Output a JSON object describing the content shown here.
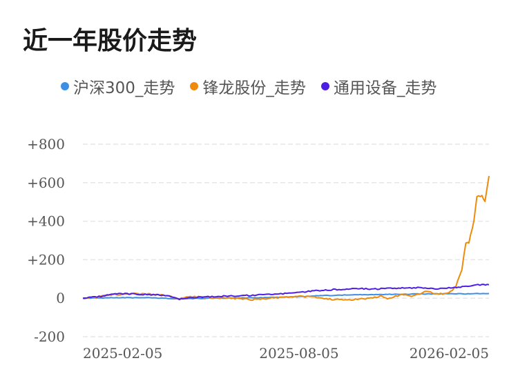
{
  "chart_data": {
    "type": "line",
    "title": "近一年股价走势",
    "legend_position": "top",
    "grid": true,
    "y_ticks": [
      "+800",
      "+600",
      "+400",
      "+200",
      "0",
      "-200"
    ],
    "y_tick_values": [
      800,
      600,
      400,
      200,
      0,
      -200
    ],
    "ylim": [
      -200,
      800
    ],
    "x_ticks": [
      "2025-02-05",
      "2025-08-05",
      "2026-02-05"
    ],
    "x_range": [
      "2025-01-02",
      "2026-02-10"
    ],
    "series": [
      {
        "name": "沪深300_走势",
        "color": "#3d8fe6",
        "points": [
          [
            "2025-01-02",
            0
          ],
          [
            "2025-02-05",
            3
          ],
          [
            "2025-03-10",
            2
          ],
          [
            "2025-04-08",
            -3
          ],
          [
            "2025-05-15",
            0
          ],
          [
            "2025-06-20",
            2
          ],
          [
            "2025-07-20",
            5
          ],
          [
            "2025-08-05",
            8
          ],
          [
            "2025-09-01",
            14
          ],
          [
            "2025-10-01",
            18
          ],
          [
            "2025-11-01",
            20
          ],
          [
            "2025-12-01",
            22
          ],
          [
            "2026-01-01",
            23
          ],
          [
            "2026-01-20",
            23
          ],
          [
            "2026-02-10",
            24
          ]
        ]
      },
      {
        "name": "锋龙股份_走势",
        "color": "#ee8a0c",
        "points": [
          [
            "2025-01-02",
            0
          ],
          [
            "2025-01-15",
            5
          ],
          [
            "2025-02-01",
            18
          ],
          [
            "2025-02-20",
            22
          ],
          [
            "2025-03-10",
            20
          ],
          [
            "2025-03-25",
            15
          ],
          [
            "2025-04-08",
            -5
          ],
          [
            "2025-04-15",
            10
          ],
          [
            "2025-05-01",
            5
          ],
          [
            "2025-05-20",
            0
          ],
          [
            "2025-06-10",
            -3
          ],
          [
            "2025-06-20",
            -8
          ],
          [
            "2025-07-05",
            0
          ],
          [
            "2025-07-25",
            5
          ],
          [
            "2025-08-15",
            10
          ],
          [
            "2025-09-01",
            -5
          ],
          [
            "2025-09-20",
            -8
          ],
          [
            "2025-10-10",
            -3
          ],
          [
            "2025-10-25",
            10
          ],
          [
            "2025-11-01",
            -5
          ],
          [
            "2025-11-15",
            20
          ],
          [
            "2025-11-25",
            10
          ],
          [
            "2025-12-10",
            35
          ],
          [
            "2025-12-20",
            20
          ],
          [
            "2026-01-01",
            25
          ],
          [
            "2026-01-08",
            60
          ],
          [
            "2026-01-14",
            150
          ],
          [
            "2026-01-18",
            290
          ],
          [
            "2026-01-21",
            290
          ],
          [
            "2026-01-26",
            400
          ],
          [
            "2026-01-29",
            530
          ],
          [
            "2026-02-03",
            530
          ],
          [
            "2026-02-06",
            505
          ],
          [
            "2026-02-10",
            635
          ]
        ]
      },
      {
        "name": "通用设备_走势",
        "color": "#4c1fe3",
        "points": [
          [
            "2025-01-02",
            0
          ],
          [
            "2025-01-20",
            10
          ],
          [
            "2025-02-05",
            25
          ],
          [
            "2025-03-01",
            20
          ],
          [
            "2025-03-25",
            15
          ],
          [
            "2025-04-08",
            -5
          ],
          [
            "2025-04-25",
            5
          ],
          [
            "2025-05-20",
            10
          ],
          [
            "2025-06-20",
            15
          ],
          [
            "2025-07-10",
            20
          ],
          [
            "2025-08-05",
            30
          ],
          [
            "2025-08-20",
            38
          ],
          [
            "2025-09-10",
            45
          ],
          [
            "2025-10-01",
            50
          ],
          [
            "2025-10-20",
            48
          ],
          [
            "2025-11-10",
            52
          ],
          [
            "2025-12-01",
            55
          ],
          [
            "2025-12-20",
            48
          ],
          [
            "2026-01-05",
            55
          ],
          [
            "2026-01-20",
            62
          ],
          [
            "2026-02-01",
            70
          ],
          [
            "2026-02-10",
            70
          ]
        ]
      }
    ]
  }
}
